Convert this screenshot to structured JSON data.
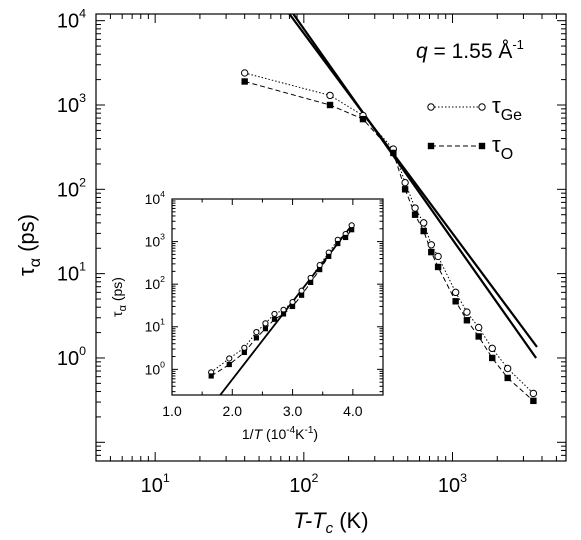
{
  "chart_data": [
    {
      "type": "line",
      "xscale": "log",
      "yscale": "log",
      "xlim": [
        4,
        5800
      ],
      "ylim": [
        0.06,
        12000
      ],
      "xlabel": {
        "a": "T",
        "b": "-T",
        "sub": "c",
        "unit": " (K)"
      },
      "ylabel": {
        "sym": "τ",
        "sub": "α",
        "unit": " (ps)"
      },
      "x_ticks": [
        {
          "base": "10",
          "exp": "1",
          "value": 10
        },
        {
          "base": "10",
          "exp": "2",
          "value": 100
        },
        {
          "base": "10",
          "exp": "3",
          "value": 1000
        }
      ],
      "y_ticks": [
        {
          "base": "10",
          "exp": "0",
          "value": 1
        },
        {
          "base": "10",
          "exp": "1",
          "value": 10
        },
        {
          "base": "10",
          "exp": "2",
          "value": 100
        },
        {
          "base": "10",
          "exp": "3",
          "value": 1000
        },
        {
          "base": "10",
          "exp": "4",
          "value": 10000
        }
      ],
      "annotation": {
        "q": "q",
        "eq": " = 1.55 Å",
        "exp": "-1"
      },
      "legend_position": "top-right",
      "series": [
        {
          "name": "τ",
          "name_sub": "Ge",
          "marker": "open-circle",
          "line": "dotted",
          "x": [
            40,
            150,
            250,
            400,
            480,
            560,
            640,
            720,
            800,
            1050,
            1250,
            1500,
            1850,
            2350,
            3500
          ],
          "y": [
            2400,
            1300,
            750,
            300,
            120,
            60,
            40,
            22,
            16,
            6,
            3.5,
            2.3,
            1.3,
            0.75,
            0.38
          ]
        },
        {
          "name": "τ",
          "name_sub": "O",
          "marker": "filled-square",
          "line": "dashed",
          "x": [
            40,
            150,
            250,
            400,
            480,
            560,
            640,
            720,
            800,
            1050,
            1250,
            1500,
            1850,
            2350,
            3500
          ],
          "y": [
            1900,
            1000,
            680,
            270,
            100,
            50,
            32,
            18,
            12,
            4.7,
            2.8,
            1.8,
            1.0,
            0.58,
            0.31
          ]
        },
        {
          "name": "",
          "marker": "none",
          "line": "solid",
          "x": [
            80,
            3700
          ],
          "y": [
            12000,
            1.35
          ]
        },
        {
          "name": "",
          "marker": "none",
          "line": "solid",
          "x": [
            85,
            3650
          ],
          "y": [
            12000,
            1.0
          ]
        }
      ]
    },
    {
      "type": "line",
      "yscale": "log",
      "xlim": [
        1.0,
        4.5
      ],
      "ylim": [
        0.25,
        10000
      ],
      "xlabel": {
        "a": "1/",
        "b": "T",
        "pre": " (10",
        "exp": "-4",
        "post": "K",
        "exp2": "-1",
        "close": ")"
      },
      "ylabel": {
        "sym": "τ",
        "sub": "α",
        "unit": " (ps)"
      },
      "x_ticks": [
        "1.0",
        "2.0",
        "3.0",
        "4.0"
      ],
      "x_tick_values": [
        1.0,
        2.0,
        3.0,
        4.0
      ],
      "y_ticks": [
        {
          "base": "10",
          "exp": "0",
          "value": 1
        },
        {
          "base": "10",
          "exp": "1",
          "value": 10
        },
        {
          "base": "10",
          "exp": "2",
          "value": 100
        },
        {
          "base": "10",
          "exp": "3",
          "value": 1000
        },
        {
          "base": "10",
          "exp": "4",
          "value": 10000
        }
      ],
      "series": [
        {
          "name": "τ",
          "name_sub": "Ge",
          "marker": "open-circle",
          "line": "dotted",
          "x": [
            1.65,
            1.95,
            2.2,
            2.4,
            2.55,
            2.7,
            2.85,
            3.0,
            3.15,
            3.3,
            3.45,
            3.6,
            3.75,
            3.88,
            3.98
          ],
          "y": [
            0.85,
            1.8,
            3.2,
            7.5,
            12,
            20,
            25,
            38,
            70,
            140,
            280,
            550,
            1100,
            1500,
            2400
          ]
        },
        {
          "name": "τ",
          "name_sub": "O",
          "marker": "filled-square",
          "line": "dashed",
          "x": [
            1.65,
            1.95,
            2.2,
            2.4,
            2.55,
            2.7,
            2.85,
            3.0,
            3.15,
            3.3,
            3.45,
            3.6,
            3.75,
            3.88,
            3.98
          ],
          "y": [
            0.7,
            1.3,
            2.5,
            5.5,
            9,
            15,
            20,
            30,
            55,
            110,
            220,
            450,
            900,
            1250,
            1900
          ]
        },
        {
          "name": "",
          "marker": "none",
          "line": "solid",
          "x": [
            1.8,
            4.0
          ],
          "y": [
            0.25,
            2600
          ]
        }
      ]
    }
  ]
}
